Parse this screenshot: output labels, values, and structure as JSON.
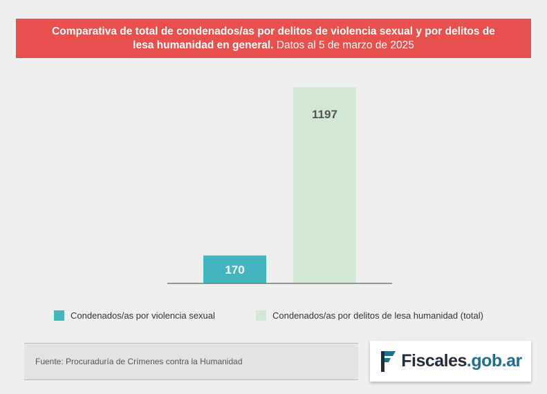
{
  "header": {
    "title_bold": "Comparativa de total de condenados/as por delitos de violencia sexual y por delitos de lesa humanidad en general.",
    "title_regular": " Datos al 5 de marzo de 2025"
  },
  "chart_data": {
    "type": "bar",
    "title": "Comparativa de total de condenados/as por delitos de violencia sexual y por delitos de lesa humanidad en general. Datos al 5 de marzo de 2025",
    "categories": [
      "Condenados/as por violencia sexual",
      "Condenados/as por delitos de lesa humanidad (total)"
    ],
    "series": [
      {
        "values": [
          170,
          1197
        ]
      }
    ],
    "data_labels": [
      "170",
      "1197"
    ],
    "colors": [
      "#43b5be",
      "#d1e8d4"
    ],
    "label_colors": [
      "#ffffff",
      "#555555"
    ],
    "xlabel": "",
    "ylabel": "",
    "ylim": [
      0,
      1197
    ],
    "grid": false,
    "legend_position": "bottom"
  },
  "legend": {
    "items": [
      {
        "label": "Condenados/as por violencia sexual",
        "color": "#43b5be"
      },
      {
        "label": "Condenados/as por delitos de lesa humanidad (total)",
        "color": "#d1e8d4"
      }
    ]
  },
  "footer": {
    "source": "Fuente: Procuraduría de Crímenes contra la Humanidad",
    "logo_main": "Fiscales",
    "logo_accent": ".gob.ar",
    "logo_color": "#1d6e8f"
  }
}
